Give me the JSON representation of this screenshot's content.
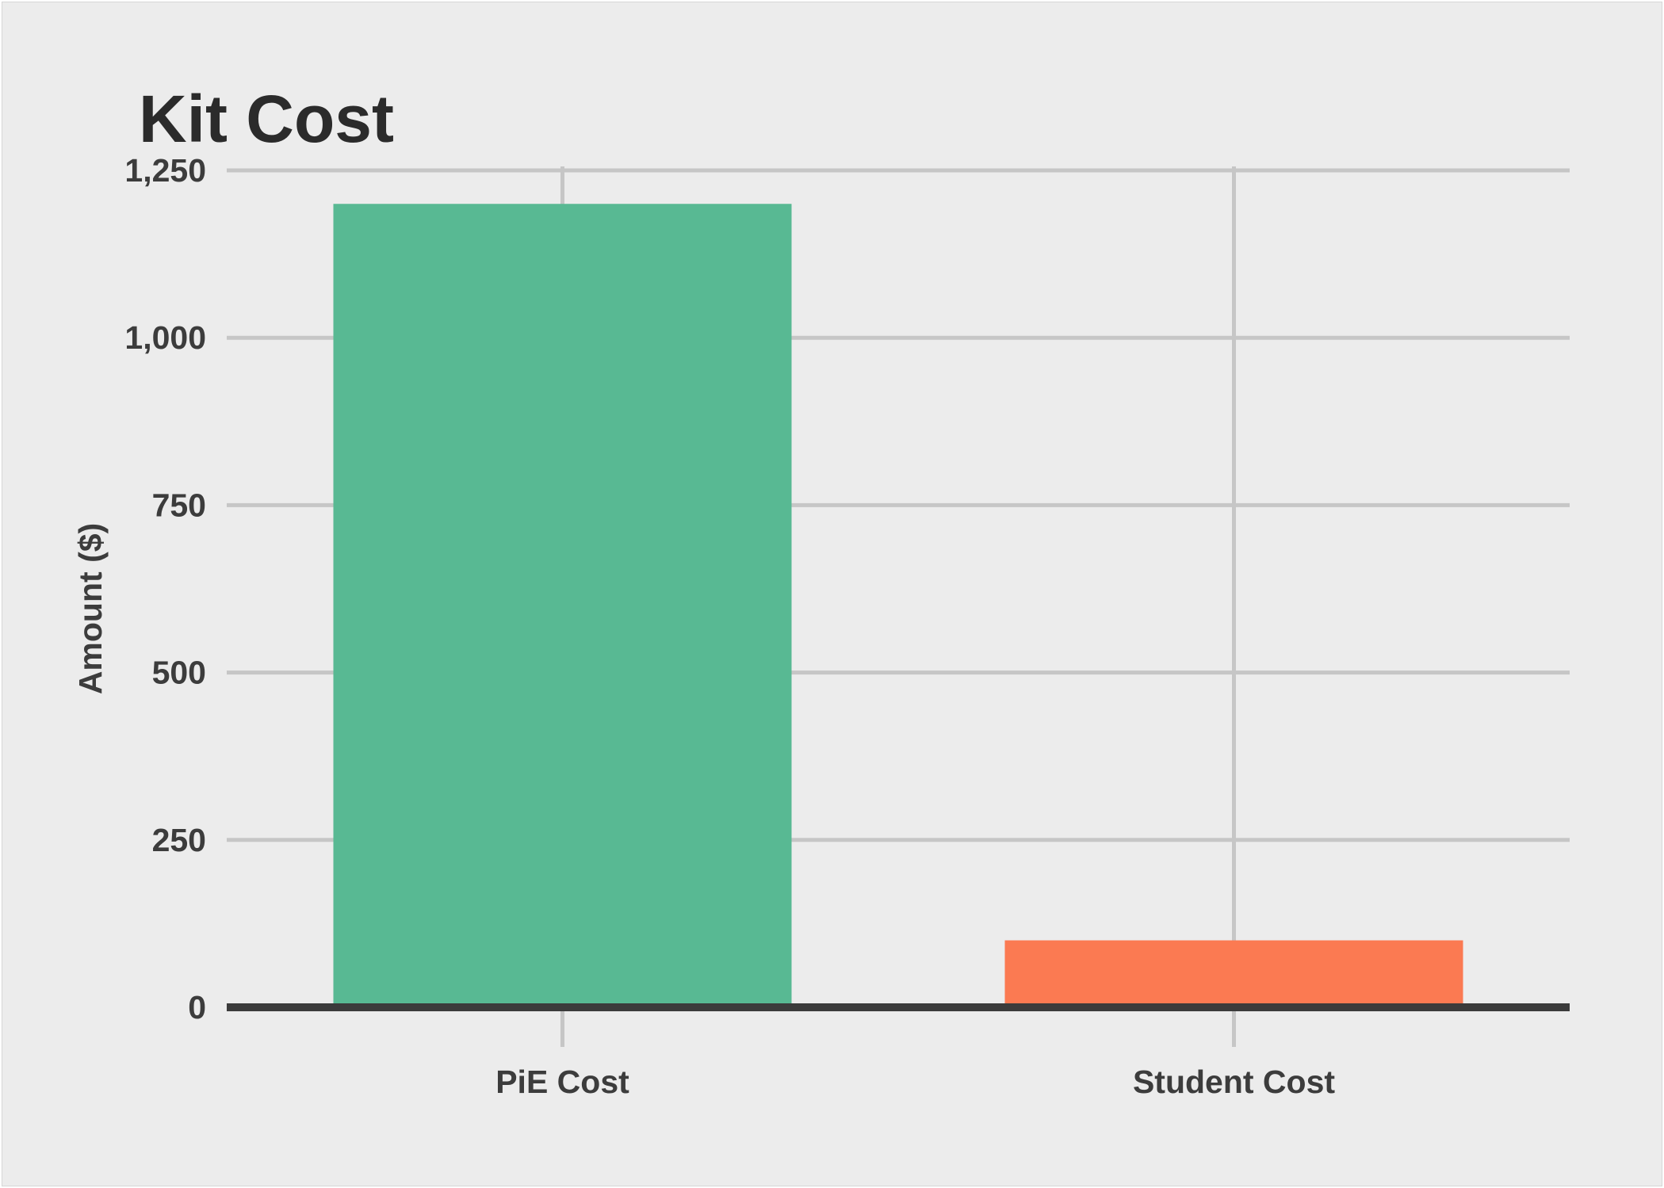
{
  "chart_data": {
    "type": "bar",
    "title": "Kit Cost",
    "xlabel": "",
    "ylabel": "Amount ($)",
    "categories": [
      "PiE Cost",
      "Student Cost"
    ],
    "values": [
      1200,
      100
    ],
    "ylim": [
      0,
      1250
    ],
    "yticks": [
      0,
      250,
      500,
      750,
      1000,
      1250
    ],
    "ytick_labels": [
      "0",
      "250",
      "500",
      "750",
      "1,000",
      "1,250"
    ],
    "bar_colors": [
      "#58b993",
      "#fb7a52"
    ],
    "grid": true,
    "legend": "none"
  },
  "colors": {
    "background": "#ececec",
    "gridline": "#c6c6c6",
    "baseline": "#3b3b3b",
    "text": "#3c3c3c"
  }
}
